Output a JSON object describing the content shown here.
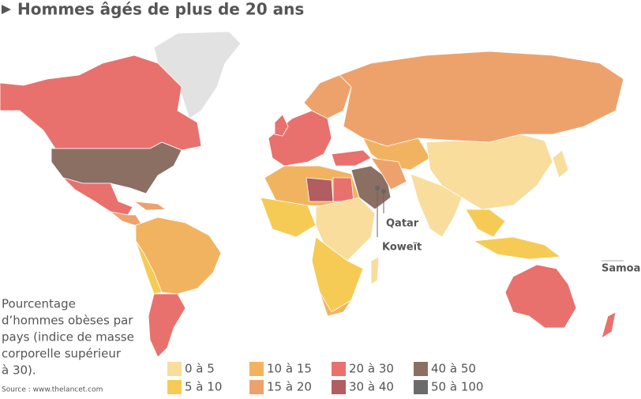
{
  "title": "Hommes âgés de plus de 20 ans",
  "labels": {
    "qatar": "Qatar",
    "koweit": "Koweït",
    "samoa": "Samoa"
  },
  "description": [
    "Pourcentage",
    "d’hommes obèses par",
    "pays (indice de masse",
    "corporelle supérieur",
    "à 30)."
  ],
  "source": "Source : www.thelancet.com",
  "legend": [
    {
      "label": "0 à 5",
      "color": "#f8dd9c"
    },
    {
      "label": "5 à 10",
      "color": "#f6cb55"
    },
    {
      "label": "10 à 15",
      "color": "#f2b360"
    },
    {
      "label": "15 à 20",
      "color": "#eea26b"
    },
    {
      "label": "20 à 30",
      "color": "#e8716d"
    },
    {
      "label": "30 à 40",
      "color": "#b15d62"
    },
    {
      "label": "40 à 50",
      "color": "#8b6f63"
    },
    {
      "label": "50 à 100",
      "color": "#6b6b6b"
    }
  ]
}
